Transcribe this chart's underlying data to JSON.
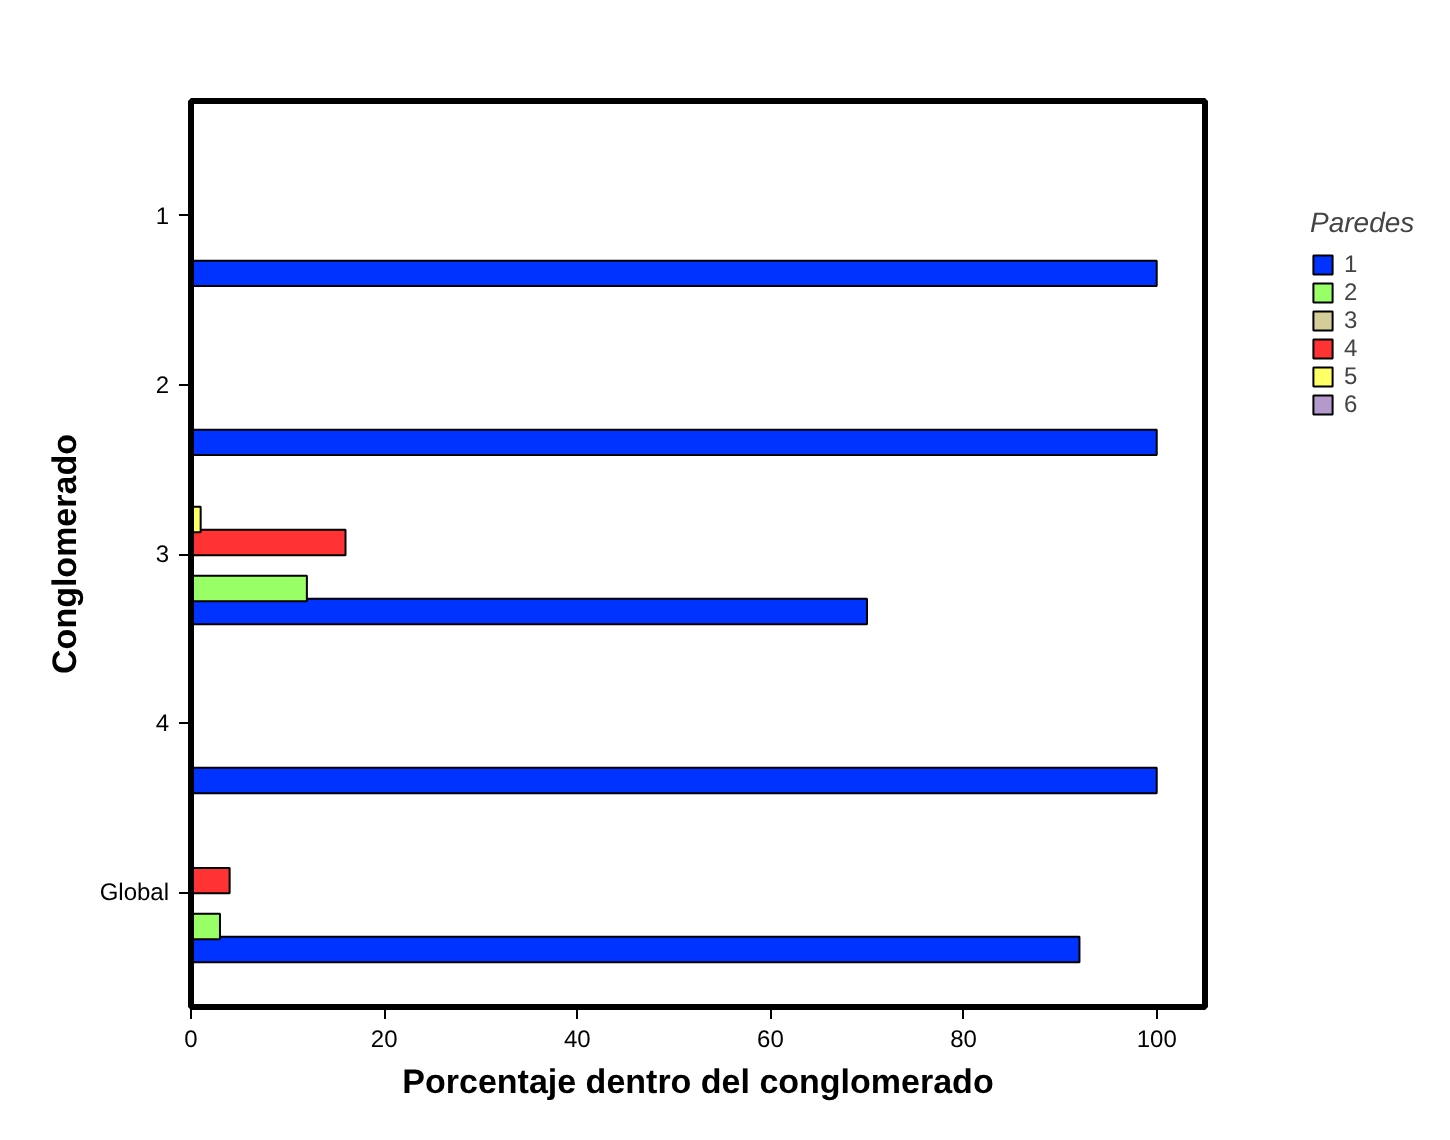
{
  "chart_data": {
    "type": "bar",
    "orientation": "horizontal",
    "xlabel": "Porcentaje dentro del conglomerado",
    "ylabel": "Conglomerado",
    "legend_title": "Paredes",
    "categories": [
      "1",
      "2",
      "3",
      "4",
      "Global"
    ],
    "series": [
      {
        "name": "1",
        "color": "#0033ff",
        "values": [
          100,
          100,
          70,
          100,
          92
        ]
      },
      {
        "name": "2",
        "color": "#99ff66",
        "values": [
          null,
          null,
          12,
          null,
          3
        ]
      },
      {
        "name": "3",
        "color": "#d4cc99",
        "values": [
          null,
          null,
          null,
          null,
          null
        ]
      },
      {
        "name": "4",
        "color": "#ff3333",
        "values": [
          null,
          null,
          16,
          null,
          4
        ]
      },
      {
        "name": "5",
        "color": "#ffff66",
        "values": [
          null,
          null,
          1,
          null,
          null
        ]
      },
      {
        "name": "6",
        "color": "#b399cc",
        "values": [
          null,
          null,
          null,
          null,
          null
        ]
      }
    ],
    "xlim": [
      0,
      105
    ],
    "xticks": [
      0,
      20,
      40,
      60,
      80,
      100
    ],
    "grid": false,
    "legend": "top right"
  }
}
